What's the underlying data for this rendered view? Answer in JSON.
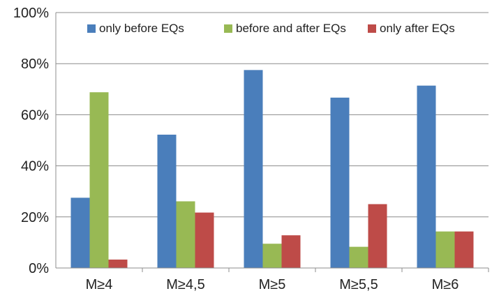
{
  "chart_data": {
    "type": "bar",
    "categories": [
      "M≥4",
      "M≥4,5",
      "M≥5",
      "M≥5,5",
      "M≥6"
    ],
    "series": [
      {
        "name": "only before EQs",
        "color": "#4a7ebb",
        "values": [
          27.5,
          52.2,
          77.5,
          66.7,
          71.4
        ]
      },
      {
        "name": "before and after EQs",
        "color": "#98b954",
        "values": [
          68.8,
          26.1,
          9.5,
          8.3,
          14.3
        ]
      },
      {
        "name": "only after EQs",
        "color": "#be4b48",
        "values": [
          3.3,
          21.7,
          12.8,
          25.0,
          14.3
        ]
      }
    ],
    "ylim": [
      0,
      100
    ],
    "y_ticks": [
      0,
      20,
      40,
      60,
      80,
      100
    ],
    "y_tick_labels": [
      "0%",
      "20%",
      "40%",
      "60%",
      "80%",
      "100%"
    ],
    "grid": true,
    "legend_position": "top-inside",
    "title": "",
    "xlabel": "",
    "ylabel": ""
  }
}
